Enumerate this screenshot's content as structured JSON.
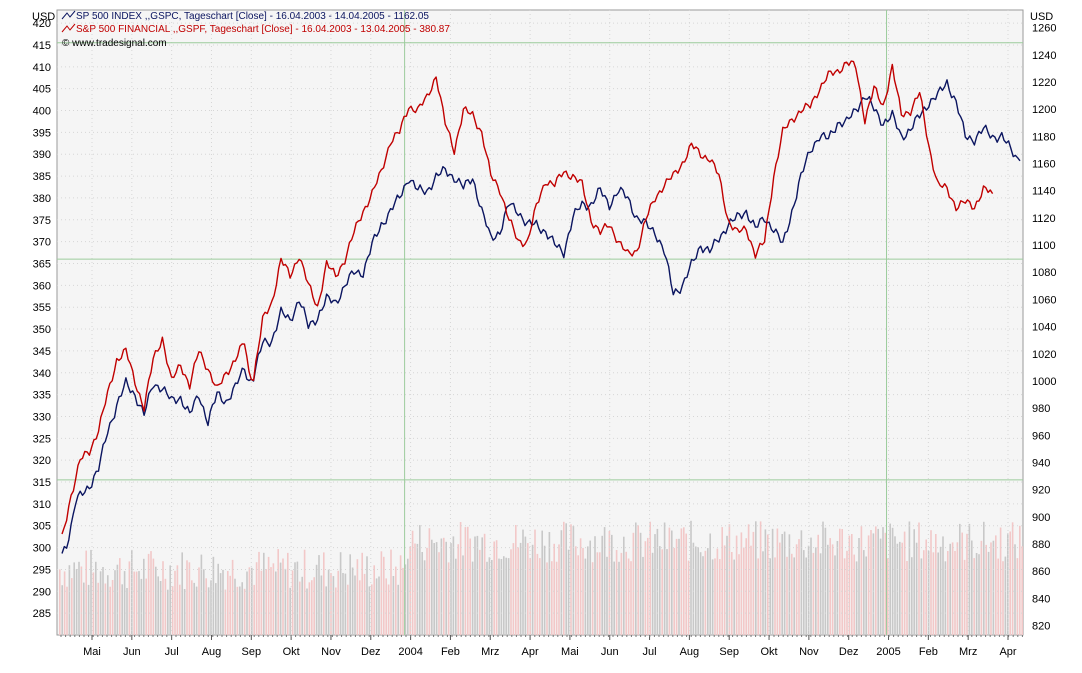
{
  "chart_data": {
    "type": "line",
    "left_axis_unit": "USD",
    "right_axis_unit": "USD",
    "copyright": "© www.tradesignal.com",
    "left_axis": {
      "range": [
        280,
        423
      ],
      "ticks": [
        285,
        290,
        295,
        300,
        305,
        310,
        315,
        320,
        325,
        330,
        335,
        340,
        345,
        350,
        355,
        360,
        365,
        370,
        375,
        380,
        385,
        390,
        395,
        400,
        405,
        410,
        415,
        420
      ]
    },
    "right_axis": {
      "range": [
        813,
        1273
      ],
      "ticks": [
        820,
        840,
        860,
        880,
        900,
        920,
        940,
        960,
        980,
        1000,
        1020,
        1040,
        1060,
        1080,
        1100,
        1120,
        1140,
        1160,
        1180,
        1200,
        1220,
        1240,
        1260
      ]
    },
    "x_labels": [
      "Mai",
      "Jun",
      "Jul",
      "Aug",
      "Sep",
      "Okt",
      "Nov",
      "Dez",
      "2004",
      "Feb",
      "Mrz",
      "Apr",
      "Mai",
      "Jun",
      "Jul",
      "Aug",
      "Sep",
      "Okt",
      "Nov",
      "Dez",
      "2005",
      "Feb",
      "Mrz",
      "Apr"
    ],
    "series": [
      {
        "name": "SP 500 INDEX ,,GSPC, Tageschart [Close] - 16.04.2003 - 14.04.2005 - 1162.05",
        "axis": "right",
        "color": "#0b1560",
        "values": [
          [
            0,
            873
          ],
          [
            1,
            880
          ],
          [
            2,
            893
          ],
          [
            3,
            911
          ],
          [
            4,
            915
          ],
          [
            6,
            923
          ],
          [
            8,
            935
          ],
          [
            10,
            963
          ],
          [
            12,
            982
          ],
          [
            14,
            998
          ],
          [
            16,
            990
          ],
          [
            18,
            975
          ],
          [
            20,
            998
          ],
          [
            22,
            995
          ],
          [
            24,
            985
          ],
          [
            26,
            988
          ],
          [
            28,
            975
          ],
          [
            30,
            990
          ],
          [
            32,
            970
          ],
          [
            34,
            990
          ],
          [
            36,
            985
          ],
          [
            38,
            995
          ],
          [
            40,
            1010
          ],
          [
            41,
            1000
          ],
          [
            42,
            1003
          ],
          [
            44,
            1028
          ],
          [
            46,
            1030
          ],
          [
            48,
            1050
          ],
          [
            50,
            1045
          ],
          [
            52,
            1060
          ],
          [
            54,
            1040
          ],
          [
            56,
            1047
          ],
          [
            58,
            1060
          ],
          [
            60,
            1058
          ],
          [
            62,
            1070
          ],
          [
            64,
            1080
          ],
          [
            66,
            1080
          ],
          [
            68,
            1100
          ],
          [
            70,
            1115
          ],
          [
            72,
            1125
          ],
          [
            74,
            1135
          ],
          [
            76,
            1150
          ],
          [
            78,
            1140
          ],
          [
            80,
            1140
          ],
          [
            82,
            1150
          ],
          [
            84,
            1155
          ],
          [
            86,
            1150
          ],
          [
            88,
            1142
          ],
          [
            90,
            1150
          ],
          [
            92,
            1125
          ],
          [
            94,
            1105
          ],
          [
            96,
            1110
          ],
          [
            98,
            1130
          ],
          [
            100,
            1125
          ],
          [
            102,
            1115
          ],
          [
            104,
            1115
          ],
          [
            106,
            1110
          ],
          [
            108,
            1100
          ],
          [
            110,
            1095
          ],
          [
            112,
            1120
          ],
          [
            114,
            1130
          ],
          [
            116,
            1130
          ],
          [
            118,
            1140
          ],
          [
            120,
            1130
          ],
          [
            122,
            1140
          ],
          [
            124,
            1135
          ],
          [
            126,
            1120
          ],
          [
            128,
            1115
          ],
          [
            130,
            1110
          ],
          [
            132,
            1095
          ],
          [
            134,
            1065
          ],
          [
            136,
            1070
          ],
          [
            138,
            1085
          ],
          [
            140,
            1100
          ],
          [
            142,
            1095
          ],
          [
            144,
            1105
          ],
          [
            146,
            1115
          ],
          [
            148,
            1120
          ],
          [
            150,
            1125
          ],
          [
            152,
            1112
          ],
          [
            154,
            1120
          ],
          [
            156,
            1112
          ],
          [
            158,
            1100
          ],
          [
            160,
            1125
          ],
          [
            162,
            1150
          ],
          [
            164,
            1170
          ],
          [
            166,
            1180
          ],
          [
            168,
            1178
          ],
          [
            170,
            1190
          ],
          [
            172,
            1190
          ],
          [
            174,
            1200
          ],
          [
            176,
            1210
          ],
          [
            178,
            1200
          ],
          [
            180,
            1190
          ],
          [
            182,
            1195
          ],
          [
            184,
            1180
          ],
          [
            186,
            1185
          ],
          [
            188,
            1195
          ],
          [
            190,
            1205
          ],
          [
            192,
            1210
          ],
          [
            194,
            1220
          ],
          [
            196,
            1205
          ],
          [
            198,
            1180
          ],
          [
            200,
            1178
          ],
          [
            202,
            1185
          ],
          [
            204,
            1180
          ],
          [
            206,
            1180
          ],
          [
            208,
            1170
          ],
          [
            210,
            1162
          ]
        ]
      },
      {
        "name": "S&P 500 FINANCIAL ,,GSPF, Tageschart [Close] - 16.04.2003 - 13.04.2005 - 380.87",
        "axis": "left",
        "color": "#c00000",
        "values": [
          [
            0,
            302
          ],
          [
            1,
            307
          ],
          [
            2,
            312
          ],
          [
            3,
            316
          ],
          [
            4,
            320
          ],
          [
            6,
            322
          ],
          [
            8,
            327
          ],
          [
            10,
            335
          ],
          [
            12,
            343
          ],
          [
            14,
            345
          ],
          [
            16,
            338
          ],
          [
            18,
            332
          ],
          [
            20,
            343
          ],
          [
            22,
            348
          ],
          [
            24,
            338
          ],
          [
            26,
            342
          ],
          [
            28,
            337
          ],
          [
            30,
            345
          ],
          [
            32,
            341
          ],
          [
            34,
            336
          ],
          [
            36,
            340
          ],
          [
            38,
            343
          ],
          [
            40,
            347
          ],
          [
            41,
            340
          ],
          [
            42,
            339
          ],
          [
            44,
            352
          ],
          [
            46,
            356
          ],
          [
            48,
            366
          ],
          [
            50,
            362
          ],
          [
            52,
            367
          ],
          [
            54,
            360
          ],
          [
            56,
            355
          ],
          [
            58,
            365
          ],
          [
            60,
            362
          ],
          [
            62,
            366
          ],
          [
            64,
            372
          ],
          [
            66,
            377
          ],
          [
            68,
            381
          ],
          [
            70,
            386
          ],
          [
            72,
            393
          ],
          [
            74,
            395
          ],
          [
            76,
            401
          ],
          [
            78,
            400
          ],
          [
            80,
            403
          ],
          [
            82,
            408
          ],
          [
            84,
            397
          ],
          [
            86,
            391
          ],
          [
            88,
            400
          ],
          [
            90,
            399
          ],
          [
            92,
            395
          ],
          [
            94,
            385
          ],
          [
            96,
            382
          ],
          [
            98,
            375
          ],
          [
            100,
            370
          ],
          [
            102,
            370
          ],
          [
            104,
            378
          ],
          [
            106,
            384
          ],
          [
            108,
            383
          ],
          [
            110,
            386
          ],
          [
            112,
            385
          ],
          [
            114,
            383
          ],
          [
            116,
            375
          ],
          [
            118,
            372
          ],
          [
            120,
            374
          ],
          [
            122,
            370
          ],
          [
            124,
            367
          ],
          [
            126,
            368
          ],
          [
            128,
            375
          ],
          [
            130,
            380
          ],
          [
            132,
            383
          ],
          [
            134,
            385
          ],
          [
            136,
            388
          ],
          [
            138,
            392
          ],
          [
            140,
            390
          ],
          [
            142,
            389
          ],
          [
            144,
            385
          ],
          [
            146,
            375
          ],
          [
            148,
            372
          ],
          [
            150,
            373
          ],
          [
            152,
            367
          ],
          [
            154,
            370
          ],
          [
            156,
            385
          ],
          [
            158,
            395
          ],
          [
            160,
            398
          ],
          [
            162,
            400
          ],
          [
            164,
            401
          ],
          [
            166,
            405
          ],
          [
            168,
            408
          ],
          [
            170,
            409
          ],
          [
            172,
            411
          ],
          [
            174,
            410
          ],
          [
            176,
            398
          ],
          [
            178,
            405
          ],
          [
            180,
            401
          ],
          [
            182,
            410
          ],
          [
            184,
            399
          ],
          [
            186,
            400
          ],
          [
            188,
            404
          ],
          [
            190,
            392
          ],
          [
            192,
            383
          ],
          [
            194,
            382
          ],
          [
            196,
            378
          ],
          [
            198,
            379
          ],
          [
            200,
            378
          ],
          [
            202,
            382
          ],
          [
            204,
            381
          ]
        ]
      }
    ],
    "volume_bars": "shaded background bars (pink/grey), bottom region"
  }
}
